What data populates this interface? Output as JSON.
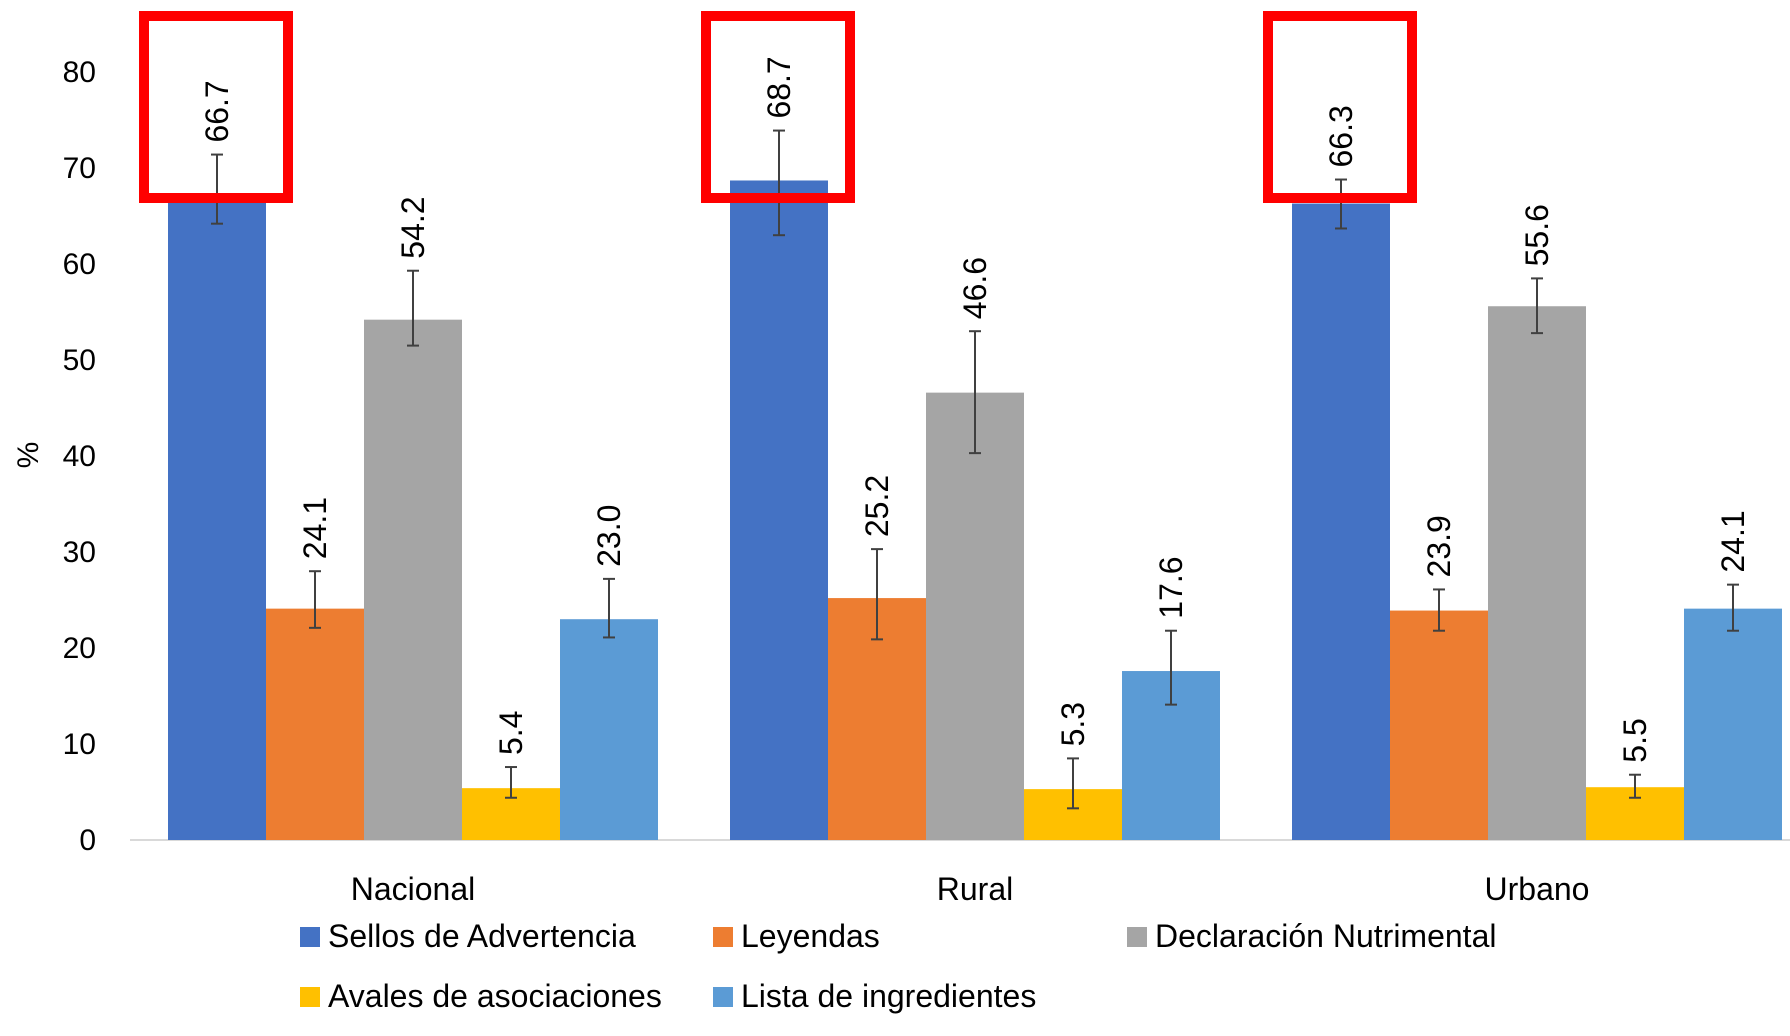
{
  "chart_data": {
    "type": "bar",
    "ylabel": "%",
    "xlabel": "",
    "ylim": [
      0,
      80
    ],
    "yticks": [
      0,
      10,
      20,
      30,
      40,
      50,
      60,
      70,
      80
    ],
    "categories": [
      "Nacional",
      "Rural",
      "Urbano"
    ],
    "grid": false,
    "legend_position": "bottom",
    "series": [
      {
        "name": "Sellos de Advertencia",
        "color": "#4472C4",
        "values": [
          66.7,
          68.7,
          66.3
        ],
        "labels": [
          "66.7",
          "68.7",
          "66.3"
        ],
        "error_low": [
          64.2,
          63.0,
          63.7
        ],
        "error_high": [
          71.4,
          73.9,
          68.8
        ]
      },
      {
        "name": "Leyendas",
        "color": "#ED7D31",
        "values": [
          24.1,
          25.2,
          23.9
        ],
        "labels": [
          "24.1",
          "25.2",
          "23.9"
        ],
        "error_low": [
          22.1,
          20.9,
          21.8
        ],
        "error_high": [
          28.0,
          30.3,
          26.1
        ]
      },
      {
        "name": "Declaración Nutrimental",
        "color": "#A5A5A5",
        "values": [
          54.2,
          46.6,
          55.6
        ],
        "labels": [
          "54.2",
          "46.6",
          "55.6"
        ],
        "error_low": [
          51.5,
          40.3,
          52.8
        ],
        "error_high": [
          59.3,
          53.0,
          58.5
        ]
      },
      {
        "name": "Avales de asociaciones",
        "color": "#FFC000",
        "values": [
          5.4,
          5.3,
          5.5
        ],
        "labels": [
          "5.4",
          "5.3",
          "5.5"
        ],
        "error_low": [
          4.4,
          3.3,
          4.4
        ],
        "error_high": [
          7.6,
          8.5,
          6.8
        ]
      },
      {
        "name": "Lista de ingredientes",
        "color": "#5B9BD5",
        "values": [
          23.0,
          17.6,
          24.1
        ],
        "labels": [
          "23.0",
          "17.6",
          "24.1"
        ],
        "error_low": [
          21.1,
          14.1,
          21.8
        ],
        "error_high": [
          27.2,
          21.8,
          26.6
        ]
      }
    ],
    "highlight": {
      "series": "Sellos de Advertencia",
      "color": "#FF0000"
    }
  }
}
